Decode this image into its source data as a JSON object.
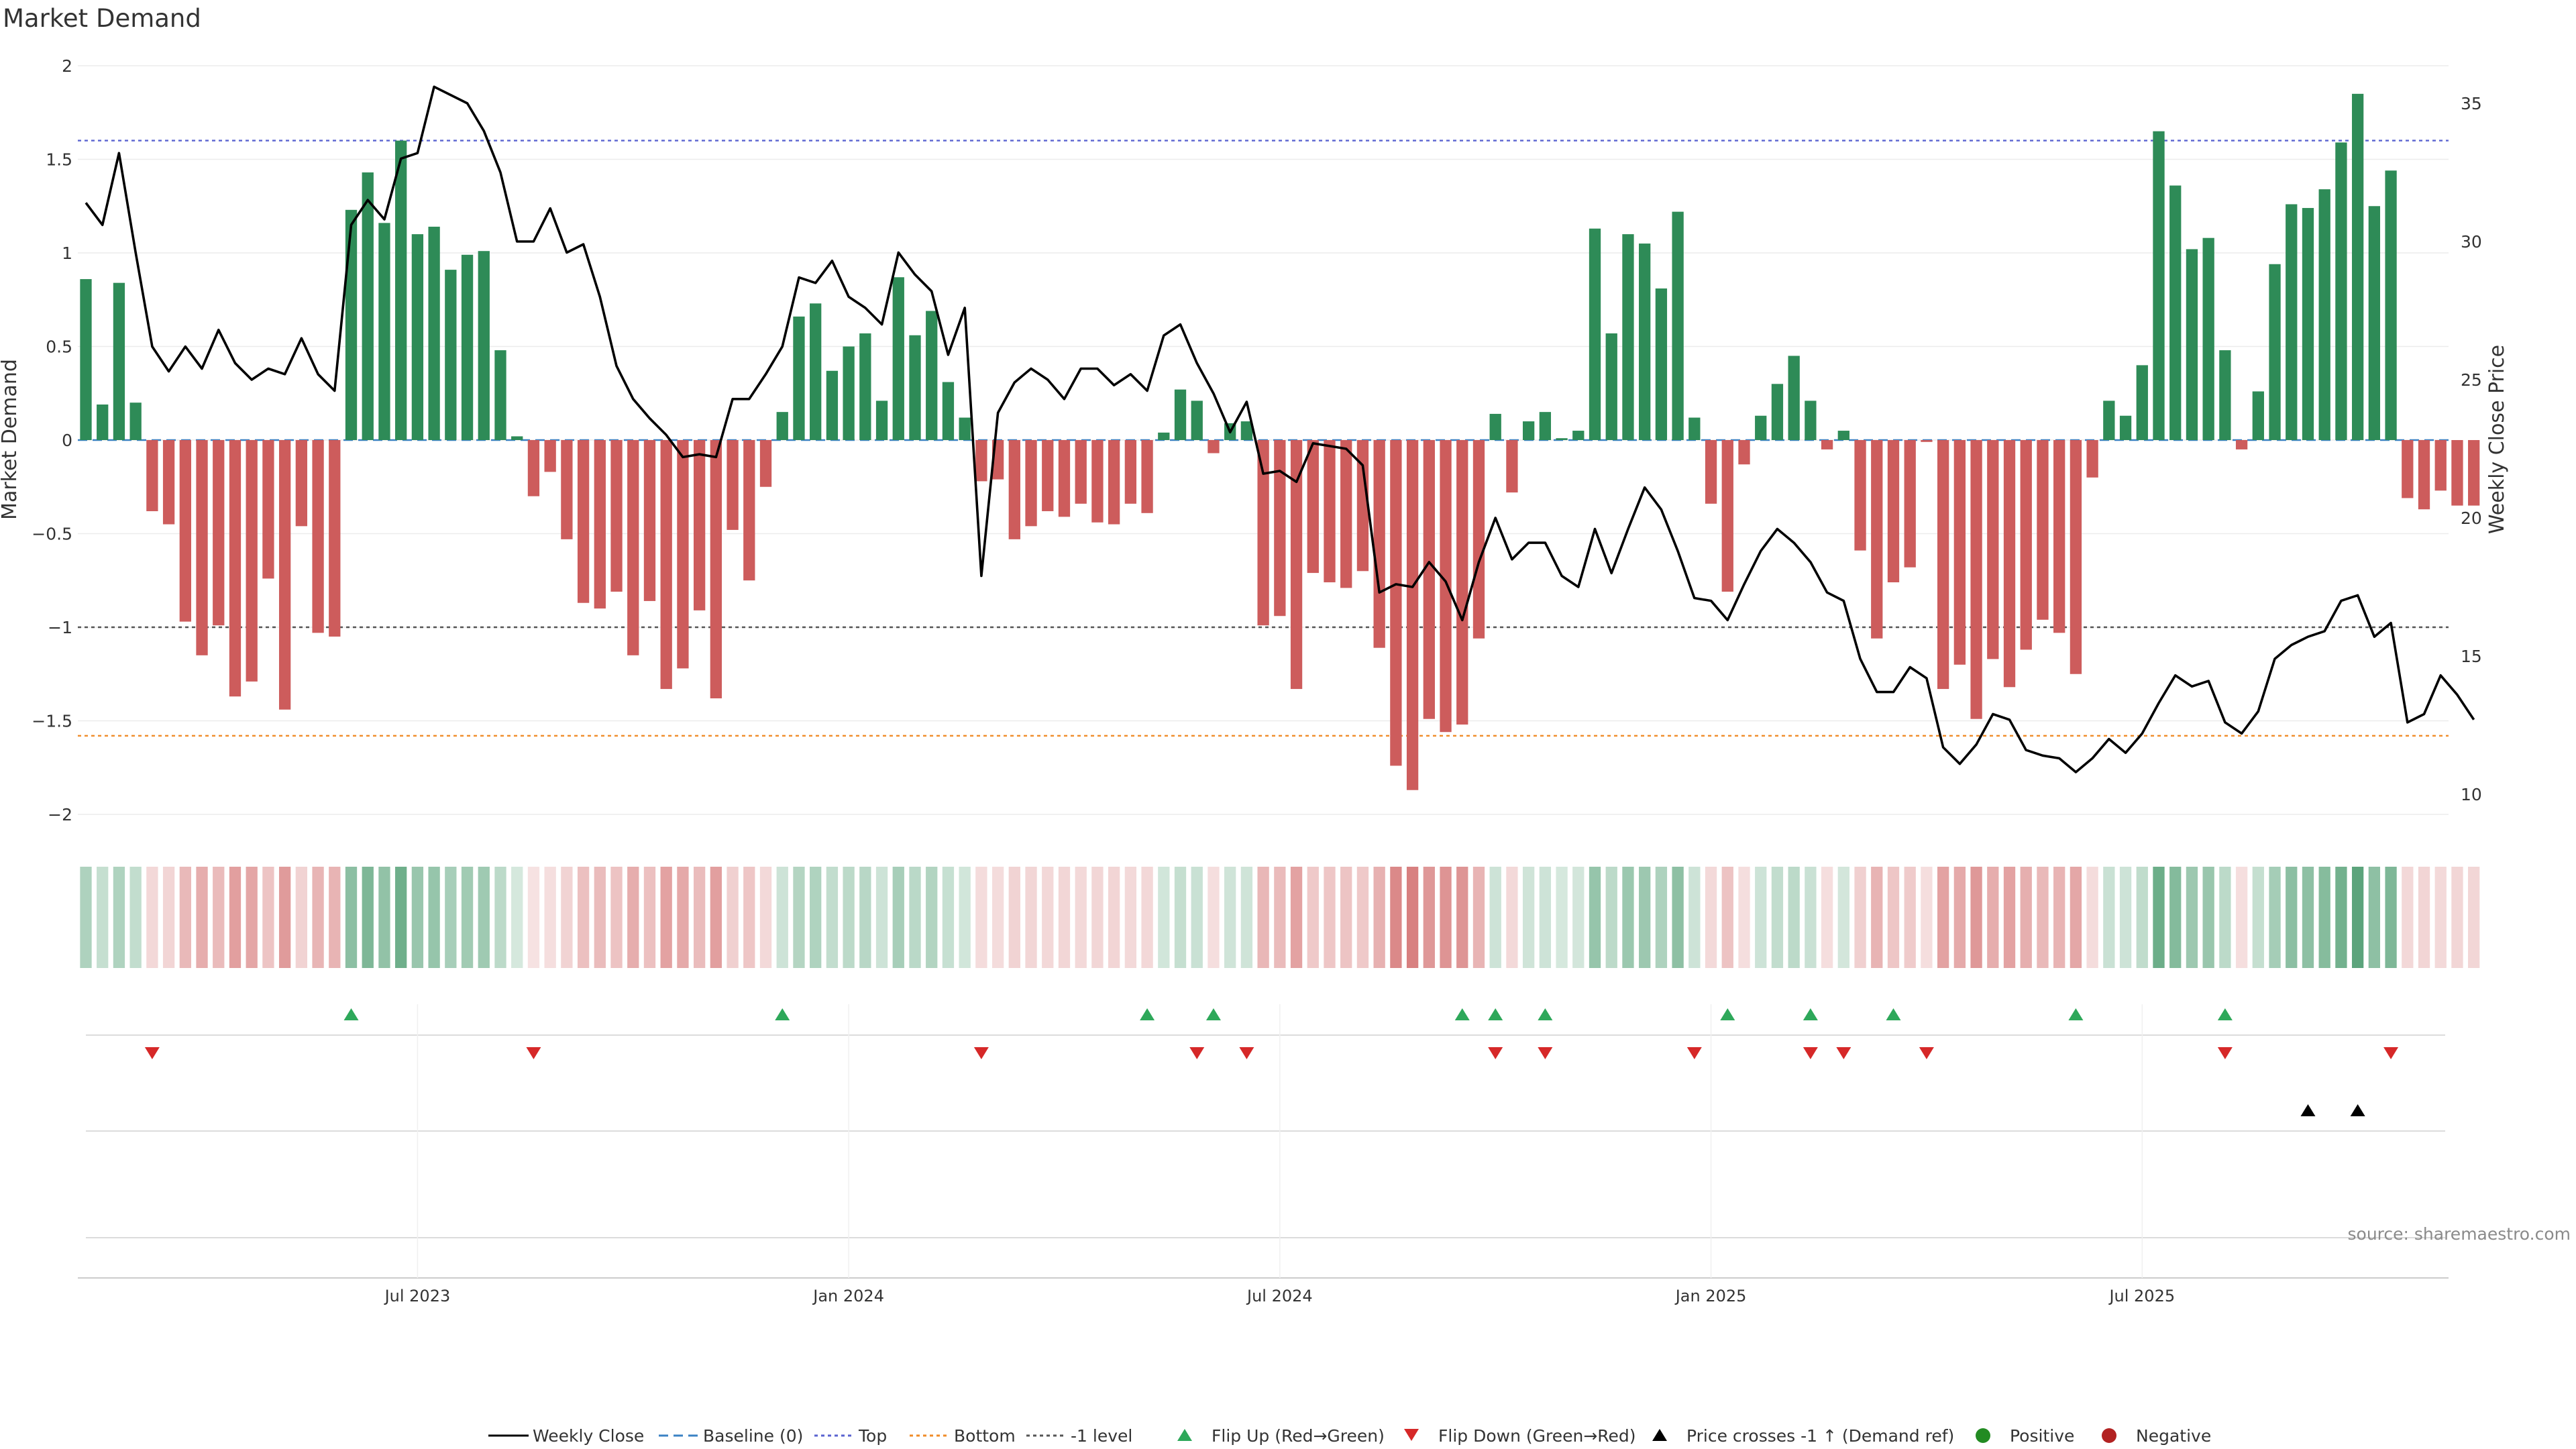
{
  "chart_data": {
    "type": "bar",
    "title": "Market Demand",
    "ylabel": "Market Demand",
    "y2label": "Weekly Close Price",
    "ylim": [
      -2.2,
      2.1
    ],
    "y2lim": [
      8.8,
      37.4
    ],
    "yticks": [
      2,
      1.5,
      1,
      0.5,
      0,
      -0.5,
      -1,
      -1.5,
      -2
    ],
    "ytick_labels": [
      "2",
      "1.5",
      "1",
      "0.5",
      "0",
      "−0.5",
      "−1",
      "−1.5",
      "−2"
    ],
    "y2ticks": [
      35,
      30,
      25,
      20,
      15,
      10
    ],
    "y2tick_labels": [
      "35",
      "30",
      "25",
      "20",
      "15",
      "10"
    ],
    "reference_lines": {
      "top": 1.6,
      "bottom": -1.58,
      "minus1": -1.0,
      "baseline": 0
    },
    "colors": {
      "positive": "#2e8b57",
      "negative": "#cd5c5c",
      "price": "#000000",
      "top": "#5a63d0",
      "bottom": "#f08c28",
      "minus1": "#555555",
      "baseline": "#3b82c4",
      "flip_up": "#2ea85a",
      "flip_down": "#d62828",
      "cross": "#000000"
    },
    "x_tick_labels": [
      {
        "label": "Jul 2023",
        "week": 20
      },
      {
        "label": "Jan 2024",
        "week": 46
      },
      {
        "label": "Jul 2024",
        "week": 72
      },
      {
        "label": "Jan 2025",
        "week": 98
      },
      {
        "label": "Jul 2025",
        "week": 124
      }
    ],
    "demand": [
      0.86,
      0.19,
      0.84,
      0.2,
      -0.38,
      -0.45,
      -0.97,
      -1.15,
      -0.99,
      -1.37,
      -1.29,
      -0.74,
      -1.44,
      -0.46,
      -1.03,
      -1.05,
      1.23,
      1.43,
      1.16,
      1.6,
      1.1,
      1.14,
      0.91,
      0.99,
      1.01,
      0.48,
      0.02,
      -0.3,
      -0.17,
      -0.53,
      -0.87,
      -0.9,
      -0.81,
      -1.15,
      -0.86,
      -1.33,
      -1.22,
      -0.91,
      -1.38,
      -0.48,
      -0.75,
      -0.25,
      0.15,
      0.66,
      0.73,
      0.37,
      0.5,
      0.57,
      0.21,
      0.87,
      0.56,
      0.69,
      0.31,
      0.12,
      -0.22,
      -0.21,
      -0.53,
      -0.46,
      -0.38,
      -0.41,
      -0.34,
      -0.44,
      -0.45,
      -0.34,
      -0.39,
      0.04,
      0.27,
      0.21,
      -0.07,
      0.09,
      0.1,
      -0.99,
      -0.94,
      -1.33,
      -0.71,
      -0.76,
      -0.79,
      -0.7,
      -1.11,
      -1.74,
      -1.87,
      -1.49,
      -1.56,
      -1.52,
      -1.06,
      0.14,
      -0.28,
      0.1,
      0.15,
      0.01,
      0.05,
      1.13,
      0.57,
      1.1,
      1.05,
      0.81,
      1.22,
      0.12,
      -0.34,
      -0.81,
      -0.13,
      0.13,
      0.3,
      0.45,
      0.21,
      -0.05,
      0.05,
      -0.59,
      -1.06,
      -0.76,
      -0.68,
      -0.01,
      -1.33,
      -1.2,
      -1.49,
      -1.17,
      -1.32,
      -1.12,
      -0.96,
      -1.03,
      -1.25,
      -0.2,
      0.21,
      0.13,
      0.4,
      1.65,
      1.36,
      1.02,
      1.08,
      0.48,
      -0.05,
      0.26,
      0.94,
      1.26,
      1.24,
      1.34,
      1.59,
      1.85,
      1.25,
      1.44,
      -0.31,
      -0.37,
      -0.27,
      -0.35,
      -0.35
    ],
    "close_price": [
      31.4,
      30.6,
      33.2,
      29.6,
      26.2,
      25.3,
      26.2,
      25.4,
      26.8,
      25.6,
      25.0,
      25.4,
      25.2,
      26.5,
      25.2,
      24.6,
      30.6,
      31.5,
      30.8,
      33.0,
      33.2,
      35.6,
      35.3,
      35.0,
      34.0,
      32.5,
      30.0,
      30.0,
      31.2,
      29.6,
      29.9,
      28.0,
      25.5,
      24.3,
      23.6,
      23.0,
      22.2,
      22.3,
      22.2,
      24.3,
      24.3,
      25.2,
      26.2,
      28.7,
      28.5,
      29.3,
      28.0,
      27.6,
      27.0,
      29.6,
      28.8,
      28.2,
      25.9,
      27.6,
      17.9,
      23.8,
      24.9,
      25.4,
      25.0,
      24.3,
      25.4,
      25.4,
      24.8,
      25.2,
      24.6,
      26.6,
      27.0,
      25.6,
      24.5,
      23.1,
      24.2,
      21.6,
      21.7,
      21.3,
      22.7,
      22.6,
      22.5,
      21.9,
      17.3,
      17.6,
      17.5,
      18.4,
      17.7,
      16.3,
      18.4,
      20.0,
      18.5,
      19.1,
      19.1,
      17.9,
      17.5,
      19.6,
      18.0,
      19.6,
      21.1,
      20.3,
      18.8,
      17.1,
      17.0,
      16.3,
      17.6,
      18.8,
      19.6,
      19.1,
      18.4,
      17.3,
      17.0,
      14.9,
      13.7,
      13.7,
      14.6,
      14.2,
      11.7,
      11.1,
      11.8,
      12.9,
      12.7,
      11.6,
      11.4,
      11.3,
      10.8,
      11.3,
      12.0,
      11.5,
      12.2,
      13.3,
      14.3,
      13.9,
      14.1,
      12.6,
      12.2,
      13.0,
      14.9,
      15.4,
      15.7,
      15.9,
      17.0,
      17.2,
      15.7,
      16.2,
      12.6,
      12.9,
      14.3,
      13.6,
      12.7
    ],
    "flip_up_weeks": [
      16,
      42,
      64,
      68,
      83,
      85,
      88,
      99,
      104,
      109,
      120,
      129
    ],
    "flip_down_weeks": [
      4,
      27,
      54,
      67,
      70,
      85,
      88,
      97,
      104,
      106,
      111,
      129,
      139
    ],
    "price_cross_weeks": [
      134,
      137
    ],
    "strength_bands": [
      0.39,
      0.28,
      0.38,
      0.29,
      0.24,
      0.26,
      0.43,
      0.5,
      0.42,
      0.59,
      0.55,
      0.36,
      0.61,
      0.27,
      0.45,
      0.46,
      0.55,
      0.62,
      0.52,
      0.69,
      0.49,
      0.5,
      0.42,
      0.45,
      0.46,
      0.32,
      0.2,
      0.18,
      0.2,
      0.27,
      0.39,
      0.41,
      0.37,
      0.5,
      0.39,
      0.57,
      0.53,
      0.41,
      0.59,
      0.29,
      0.35,
      0.23,
      0.24,
      0.36,
      0.38,
      0.29,
      0.32,
      0.34,
      0.24,
      0.42,
      0.33,
      0.37,
      0.27,
      0.22,
      0.21,
      0.21,
      0.27,
      0.25,
      0.24,
      0.25,
      0.23,
      0.25,
      0.26,
      0.23,
      0.24,
      0.22,
      0.28,
      0.26,
      0.2,
      0.23,
      0.23,
      0.44,
      0.42,
      0.57,
      0.33,
      0.35,
      0.36,
      0.33,
      0.48,
      0.72,
      0.78,
      0.63,
      0.66,
      0.65,
      0.46,
      0.24,
      0.23,
      0.23,
      0.24,
      0.2,
      0.21,
      0.5,
      0.32,
      0.48,
      0.47,
      0.39,
      0.54,
      0.24,
      0.23,
      0.37,
      0.2,
      0.24,
      0.29,
      0.32,
      0.26,
      0.2,
      0.21,
      0.29,
      0.46,
      0.35,
      0.32,
      0.2,
      0.57,
      0.52,
      0.63,
      0.5,
      0.57,
      0.49,
      0.43,
      0.46,
      0.54,
      0.21,
      0.26,
      0.24,
      0.3,
      0.7,
      0.59,
      0.47,
      0.49,
      0.32,
      0.2,
      0.28,
      0.43,
      0.55,
      0.54,
      0.58,
      0.67,
      0.78,
      0.54,
      0.62,
      0.24,
      0.26,
      0.23,
      0.25,
      0.25
    ],
    "legend": [
      {
        "label": "Weekly Close",
        "kind": "solid-line"
      },
      {
        "label": "Baseline (0)",
        "kind": "dashed-line"
      },
      {
        "label": "Top",
        "kind": "dotted-line"
      },
      {
        "label": "Bottom",
        "kind": "dotted-line"
      },
      {
        "label": "-1 level",
        "kind": "dotted-line"
      },
      {
        "label": "Flip Up (Red→Green)",
        "kind": "triangle-up"
      },
      {
        "label": "Flip Down (Green→Red)",
        "kind": "triangle-down"
      },
      {
        "label": "Price crosses -1 ↑ (Demand ref)",
        "kind": "triangle-up"
      },
      {
        "label": "Positive",
        "kind": "dot"
      },
      {
        "label": "Negative",
        "kind": "dot"
      }
    ],
    "source": "source: sharemaestro.com"
  }
}
